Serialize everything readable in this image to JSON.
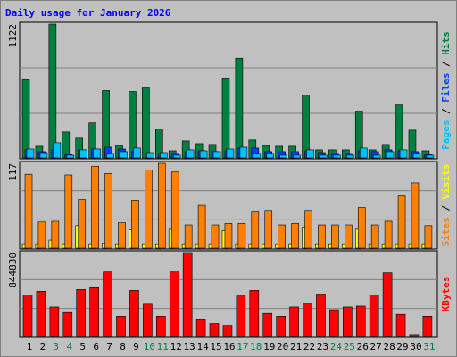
{
  "title": "Daily usage for January 2026",
  "categories": [
    "1",
    "2",
    "3",
    "4",
    "5",
    "6",
    "7",
    "8",
    "9",
    "10",
    "11",
    "12",
    "13",
    "14",
    "15",
    "16",
    "17",
    "18",
    "19",
    "20",
    "21",
    "22",
    "23",
    "24",
    "25",
    "26",
    "27",
    "28",
    "29",
    "30",
    "31"
  ],
  "category_colors": [
    "#000000",
    "#000000",
    "#008040",
    "#008040",
    "#000000",
    "#000000",
    "#000000",
    "#000000",
    "#000000",
    "#008040",
    "#008040",
    "#000000",
    "#000000",
    "#000000",
    "#000000",
    "#000000",
    "#008040",
    "#008040",
    "#000000",
    "#000000",
    "#000000",
    "#000000",
    "#000000",
    "#008040",
    "#008040",
    "#000000",
    "#000000",
    "#000000",
    "#000000",
    "#000000",
    "#008040"
  ],
  "legend_separator": " / ",
  "chart_data": [
    {
      "type": "bar",
      "ylim": [
        0,
        1122
      ],
      "yticks": [
        1122
      ],
      "series": [
        {
          "name": "Pages",
          "color": "#00c0ff",
          "values": [
            75,
            45,
            128,
            23,
            68,
            75,
            38,
            53,
            83,
            45,
            45,
            23,
            68,
            60,
            53,
            75,
            90,
            38,
            38,
            23,
            23,
            68,
            23,
            23,
            23,
            83,
            23,
            53,
            68,
            38,
            23
          ]
        },
        {
          "name": "Files",
          "color": "#0040ff",
          "values": [
            68,
            53,
            68,
            30,
            68,
            75,
            90,
            75,
            53,
            38,
            38,
            38,
            53,
            60,
            53,
            60,
            83,
            83,
            53,
            53,
            53,
            60,
            45,
            38,
            38,
            60,
            53,
            68,
            60,
            53,
            30
          ]
        },
        {
          "name": "Hits",
          "color": "#008040",
          "values": [
            655,
            98,
            1122,
            218,
            166,
            294,
            565,
            105,
            557,
            587,
            241,
            60,
            143,
            120,
            113,
            670,
            836,
            151,
            105,
            98,
            98,
            527,
            68,
            68,
            68,
            392,
            68,
            113,
            444,
            233,
            60
          ]
        }
      ]
    },
    {
      "type": "bar",
      "ylim": [
        0,
        117
      ],
      "yticks": [
        117
      ],
      "series": [
        {
          "name": "Sites",
          "color": "#ff8000",
          "values": [
            102,
            36,
            37,
            101,
            67,
            113,
            103,
            35,
            66,
            108,
            117,
            105,
            32,
            59,
            32,
            34,
            34,
            51,
            52,
            32,
            34,
            52,
            32,
            32,
            32,
            56,
            32,
            37,
            72,
            90,
            31
          ]
        },
        {
          "name": "Visits",
          "color": "#ffff00",
          "values": [
            6,
            6,
            11,
            6,
            31,
            6,
            7,
            6,
            25,
            6,
            6,
            26,
            6,
            6,
            6,
            24,
            6,
            6,
            6,
            6,
            6,
            29,
            6,
            6,
            6,
            26,
            6,
            6,
            6,
            6,
            6
          ]
        }
      ]
    },
    {
      "type": "bar",
      "ylim": [
        0,
        844830
      ],
      "yticks": [
        844830
      ],
      "series": [
        {
          "name": "KBytes",
          "color": "#ff0000",
          "values": [
            418000,
            455000,
            297000,
            241000,
            473000,
            492000,
            650000,
            204000,
            464000,
            325000,
            204000,
            650000,
            844830,
            176000,
            130000,
            111000,
            408000,
            464000,
            232000,
            204000,
            297000,
            334000,
            427000,
            269000,
            297000,
            306000,
            418000,
            641000,
            223000,
            19000,
            204000
          ]
        }
      ]
    }
  ]
}
